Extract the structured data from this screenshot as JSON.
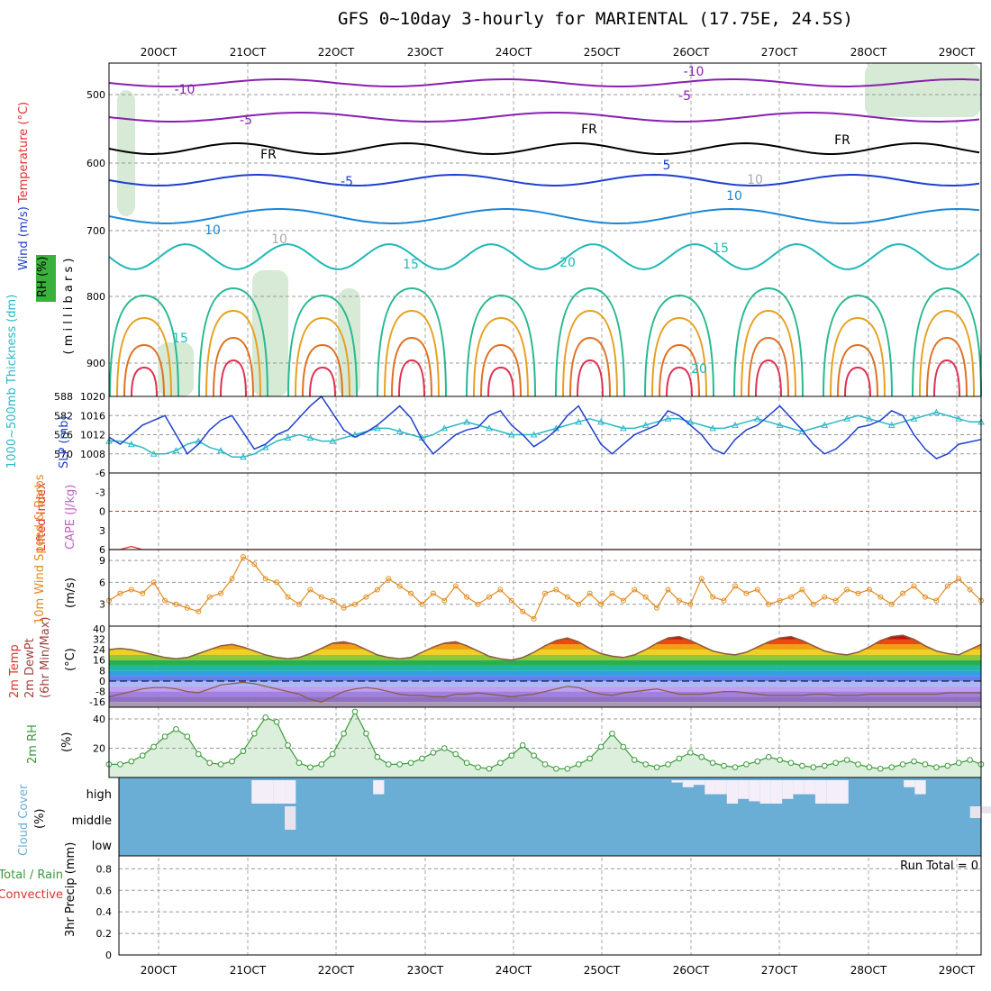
{
  "title": "GFS 0~10day 3-hourly for MARIENTAL (17.75E, 24.5S)",
  "colors": {
    "temperature": "#1f9fd6",
    "freezing": "#000000",
    "slp": "#1e3fd0",
    "thickness": "#2ab8c8",
    "lifted_index": "#e03030",
    "cape": "#c060c0",
    "wind10m": "#e38a1a",
    "rh": "#3a9a3a",
    "cloud": "#6aaed6",
    "precip_total": "#3a9a3a",
    "precip_conv": "#e03030"
  },
  "chart_data": [
    {
      "panel": "upper-air",
      "type": "contour",
      "ylabel_parts": [
        "Wind (m/s)",
        "Temperature (°C)",
        "RH (%)"
      ],
      "ylabel_mb": "( m i l l i b a r s )",
      "y_ticks": [
        "500",
        "600",
        "700",
        "800",
        "900"
      ],
      "contour_labels": [
        "-10",
        "-10",
        "-5",
        "-5",
        "FR",
        "FR",
        "FR",
        "-5",
        "5",
        "10",
        "10",
        "15",
        "15",
        "20",
        "20",
        "10",
        "15",
        "10"
      ]
    },
    {
      "panel": "slp-thickness",
      "type": "line",
      "ylabel_left": "1000~500mb Thickness (dm)",
      "ylabel_right": "SLP (mb)",
      "left_ticks": [
        "588",
        "582",
        "576",
        "570"
      ],
      "right_ticks": [
        "1020",
        "1016",
        "1012",
        "1008"
      ],
      "series": [
        {
          "name": "SLP (mb)",
          "values": [
            1011.5,
            1010,
            1012,
            1014,
            1015,
            1016,
            1012,
            1008,
            1010,
            1013,
            1015,
            1016,
            1012.5,
            1009,
            1010,
            1012,
            1013,
            1015.5,
            1018,
            1020,
            1016.5,
            1013,
            1011.5,
            1012.5,
            1014,
            1016,
            1018,
            1015.5,
            1011,
            1008,
            1010,
            1012,
            1013,
            1013.5,
            1016,
            1017,
            1014,
            1012,
            1009.5,
            1011,
            1013,
            1016,
            1018,
            1014,
            1010,
            1008,
            1010,
            1012,
            1013,
            1014,
            1017,
            1016,
            1014,
            1012,
            1009,
            1008,
            1011,
            1013,
            1014,
            1016,
            1018,
            1015.5,
            1013,
            1010,
            1008,
            1009,
            1011,
            1013.5,
            1014,
            1015,
            1017,
            1016,
            1012,
            1009,
            1007,
            1008,
            1010,
            1010.5,
            1011
          ]
        },
        {
          "name": "1000~500mb Thickness (dm)",
          "values": [
            574,
            574,
            573,
            572,
            570,
            570,
            571,
            573,
            574,
            572,
            571,
            569,
            569,
            570,
            572,
            574,
            575,
            576,
            575,
            574,
            574,
            575,
            576,
            577,
            578,
            578,
            577,
            576,
            575,
            576,
            578,
            579,
            580,
            579,
            578,
            577,
            576,
            576,
            576,
            577,
            578,
            579,
            580,
            581,
            580,
            579,
            578,
            578,
            579,
            580,
            581,
            581,
            580,
            579,
            578,
            578,
            579,
            580,
            581,
            580,
            579,
            578,
            577,
            578,
            579,
            580,
            581,
            582,
            581,
            580,
            579,
            580,
            581,
            582,
            583,
            582,
            581,
            580,
            580
          ]
        }
      ]
    },
    {
      "panel": "lifted-index-cape",
      "type": "line",
      "ylabel_left": "Lifted Index",
      "ylabel_right": "CAPE (J/kg)",
      "y_ticks": [
        "-6",
        "-3",
        "0",
        "3",
        "6"
      ],
      "series": [
        {
          "name": "Lifted Index",
          "values": [
            6,
            6,
            5.5,
            6,
            6,
            6,
            6,
            6,
            6,
            6,
            6,
            6,
            6,
            6,
            6,
            6,
            6,
            6,
            6,
            6,
            6,
            6,
            6,
            6,
            6,
            6,
            6,
            6,
            6,
            6,
            6,
            6,
            6,
            6,
            6,
            6,
            6,
            6,
            6,
            6,
            6,
            6,
            6,
            6,
            6,
            6,
            6,
            6,
            6,
            6,
            6,
            6,
            6,
            6,
            6,
            6,
            6,
            6,
            6,
            6,
            6,
            6,
            6,
            6,
            6,
            6,
            6,
            6,
            6,
            6,
            6,
            6,
            6,
            6,
            6,
            6,
            6,
            6,
            6
          ]
        }
      ]
    },
    {
      "panel": "wind-10m",
      "type": "line",
      "ylabel_left": "10m Wind Speed & Barbs",
      "ylabel_unit": "(m/s)",
      "y_ticks": [
        "3",
        "6",
        "9"
      ],
      "series": [
        {
          "name": "10m Wind Speed (m/s)",
          "values": [
            3.5,
            4.5,
            5,
            4.5,
            6,
            3.5,
            3,
            2.5,
            2,
            4,
            4.5,
            6.5,
            9.5,
            8.5,
            6.5,
            6,
            4,
            3,
            5,
            4,
            3.5,
            2.5,
            3,
            4,
            5,
            6.5,
            5.5,
            4.5,
            3,
            4.5,
            3.5,
            5.5,
            4,
            3,
            4,
            5,
            3.5,
            2,
            1,
            4.5,
            5,
            4,
            3,
            4.5,
            3,
            4.5,
            3.5,
            5,
            4,
            2.5,
            5,
            3.5,
            3,
            6.5,
            4,
            3.5,
            5.5,
            4.5,
            5,
            3,
            3.5,
            4,
            5,
            3,
            4,
            3.5,
            5,
            4.5,
            5,
            4,
            3,
            4.5,
            5.5,
            4,
            3.5,
            5.5,
            6.5,
            5,
            3.5
          ]
        }
      ]
    },
    {
      "panel": "temp-dewpt",
      "type": "area",
      "ylabel_lines": [
        "2m Temp",
        "2m DewPt",
        "(6hr Min/Max)"
      ],
      "ylabel_unit": "(°C)",
      "y_ticks": [
        "40",
        "32",
        "24",
        "16",
        "8",
        "0",
        "-8",
        "-16"
      ],
      "series": [
        {
          "name": "2m Temp (°C)",
          "values": [
            24,
            25,
            24,
            22,
            20,
            18,
            17,
            18,
            21,
            24,
            27,
            28,
            26,
            23,
            20,
            18,
            17,
            18,
            21,
            25,
            29,
            30,
            28,
            24,
            20,
            18,
            17,
            18,
            22,
            26,
            29,
            30,
            27,
            23,
            19,
            17,
            16,
            18,
            22,
            27,
            31,
            33,
            30,
            25,
            21,
            19,
            18,
            20,
            24,
            29,
            33,
            34,
            31,
            27,
            23,
            21,
            20,
            22,
            26,
            30,
            33,
            34,
            31,
            27,
            23,
            21,
            20,
            22,
            26,
            31,
            34,
            35,
            32,
            27,
            23,
            21,
            20,
            24,
            28
          ]
        },
        {
          "name": "2m DewPt (°C)",
          "values": [
            -12,
            -10,
            -8,
            -6,
            -5,
            -5,
            -6,
            -8,
            -9,
            -6,
            -3,
            -2,
            -1,
            -2,
            -4,
            -6,
            -8,
            -10,
            -14,
            -16,
            -12,
            -8,
            -6,
            -5,
            -6,
            -8,
            -10,
            -11,
            -11,
            -12,
            -12,
            -10,
            -10,
            -9,
            -10,
            -11,
            -12,
            -11,
            -10,
            -8,
            -6,
            -4,
            -5,
            -8,
            -10,
            -11,
            -9,
            -8,
            -7,
            -6,
            -8,
            -10,
            -10,
            -10,
            -9,
            -8,
            -8,
            -9,
            -10,
            -11,
            -11,
            -11,
            -11,
            -10,
            -10,
            -11,
            -11,
            -11,
            -10,
            -10,
            -10,
            -10,
            -10,
            -10,
            -10,
            -9,
            -9,
            -9,
            -9
          ]
        }
      ]
    },
    {
      "panel": "rh-2m",
      "type": "area",
      "ylabel_left": "2m RH",
      "ylabel_unit": "(%)",
      "y_ticks": [
        "40",
        "20"
      ],
      "series": [
        {
          "name": "2m RH (%)",
          "values": [
            9,
            9,
            11,
            15,
            21,
            28,
            33,
            28,
            16,
            10,
            9,
            11,
            18,
            30,
            41,
            38,
            22,
            10,
            7,
            9,
            16,
            30,
            45,
            30,
            14,
            9,
            9,
            10,
            13,
            17,
            20,
            16,
            10,
            7,
            6,
            10,
            15,
            22,
            15,
            9,
            6,
            6,
            9,
            13,
            21,
            30,
            21,
            12,
            9,
            7,
            9,
            13,
            17,
            14,
            10,
            8,
            7,
            9,
            11,
            14,
            12,
            10,
            8,
            7,
            8,
            10,
            12,
            9,
            7,
            6,
            7,
            9,
            11,
            9,
            7,
            8,
            10,
            12,
            9
          ]
        }
      ]
    },
    {
      "panel": "cloud-cover",
      "type": "heatmap",
      "ylabel_left": "Cloud Cover",
      "ylabel_unit": "(%)",
      "levels": [
        "high",
        "middle",
        "low"
      ],
      "high_percent": [
        0,
        0,
        0,
        0,
        0,
        0,
        0,
        0,
        0,
        0,
        0,
        0,
        100,
        100,
        100,
        100,
        0,
        0,
        0,
        0,
        0,
        0,
        0,
        60,
        0,
        0,
        0,
        0,
        0,
        0,
        0,
        0,
        0,
        0,
        0,
        0,
        0,
        0,
        0,
        0,
        0,
        0,
        0,
        0,
        0,
        0,
        0,
        0,
        0,
        0,
        10,
        30,
        20,
        60,
        60,
        100,
        80,
        90,
        100,
        100,
        80,
        60,
        60,
        100,
        100,
        100,
        0,
        0,
        0,
        0,
        0,
        30,
        60,
        0,
        0,
        0,
        0,
        0,
        0
      ],
      "middle_percent": [
        0,
        0,
        0,
        0,
        0,
        0,
        0,
        0,
        0,
        0,
        0,
        0,
        0,
        0,
        0,
        100,
        0,
        0,
        0,
        0,
        0,
        0,
        0,
        0,
        0,
        0,
        0,
        0,
        0,
        0,
        0,
        0,
        0,
        0,
        0,
        0,
        0,
        0,
        0,
        0,
        0,
        0,
        0,
        0,
        0,
        0,
        0,
        0,
        0,
        0,
        0,
        0,
        0,
        0,
        0,
        0,
        0,
        0,
        0,
        0,
        0,
        0,
        0,
        0,
        0,
        0,
        0,
        0,
        0,
        0,
        0,
        0,
        0,
        0,
        0,
        0,
        0,
        50,
        30,
        30,
        0
      ]
    },
    {
      "panel": "precip",
      "type": "bar",
      "ylabel_parts": [
        "Total / Rain",
        "Convective",
        "3hr Precip (mm)"
      ],
      "run_total_label": "Run Total = 0",
      "y_ticks": [
        "0",
        "0.2",
        "0.4",
        "0.6",
        "0.8"
      ],
      "series": [
        {
          "name": "3hr Precip (mm)",
          "values": []
        }
      ]
    }
  ],
  "time_axis": {
    "dates": [
      "20OCT",
      "21OCT",
      "22OCT",
      "23OCT",
      "24OCT",
      "25OCT",
      "26OCT",
      "27OCT",
      "28OCT",
      "29OCT"
    ]
  }
}
